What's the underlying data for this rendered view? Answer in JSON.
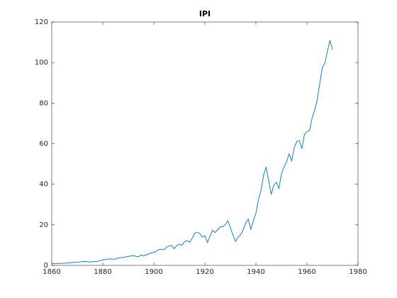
{
  "chart_data": {
    "type": "line",
    "title": "IPI",
    "x": [
      1860,
      1861,
      1862,
      1863,
      1864,
      1865,
      1866,
      1867,
      1868,
      1869,
      1870,
      1871,
      1872,
      1873,
      1874,
      1875,
      1876,
      1877,
      1878,
      1879,
      1880,
      1881,
      1882,
      1883,
      1884,
      1885,
      1886,
      1887,
      1888,
      1889,
      1890,
      1891,
      1892,
      1893,
      1894,
      1895,
      1896,
      1897,
      1898,
      1899,
      1900,
      1901,
      1902,
      1903,
      1904,
      1905,
      1906,
      1907,
      1908,
      1909,
      1910,
      1911,
      1912,
      1913,
      1914,
      1915,
      1916,
      1917,
      1918,
      1919,
      1920,
      1921,
      1922,
      1923,
      1924,
      1925,
      1926,
      1927,
      1928,
      1929,
      1930,
      1931,
      1932,
      1933,
      1934,
      1935,
      1936,
      1937,
      1938,
      1939,
      1940,
      1941,
      1942,
      1943,
      1944,
      1945,
      1946,
      1947,
      1948,
      1949,
      1950,
      1951,
      1952,
      1953,
      1954,
      1955,
      1956,
      1957,
      1958,
      1959,
      1960,
      1961,
      1962,
      1963,
      1964,
      1965,
      1966,
      1967,
      1968,
      1969,
      1970
    ],
    "series": [
      {
        "name": "IPI",
        "color": "#0072bd",
        "values": [
          0.9,
          0.9,
          0.9,
          1.0,
          1.0,
          1.0,
          1.2,
          1.3,
          1.4,
          1.5,
          1.6,
          1.6,
          1.9,
          2.0,
          1.8,
          1.7,
          1.8,
          1.9,
          2.0,
          2.3,
          2.7,
          3.0,
          3.1,
          3.2,
          3.1,
          3.1,
          3.6,
          3.8,
          3.9,
          4.2,
          4.5,
          4.6,
          4.9,
          4.4,
          4.3,
          5.1,
          4.7,
          5.1,
          5.7,
          6.2,
          6.4,
          7.0,
          7.8,
          8.0,
          7.6,
          9.0,
          9.7,
          9.8,
          8.2,
          9.8,
          10.5,
          10.0,
          11.6,
          12.2,
          11.4,
          13.3,
          16.0,
          16.2,
          15.8,
          14.0,
          14.6,
          11.3,
          14.3,
          17.3,
          16.2,
          17.6,
          19.0,
          19.1,
          20.0,
          22.0,
          18.5,
          15.0,
          11.8,
          13.9,
          15.1,
          17.5,
          21.0,
          22.8,
          17.8,
          22.1,
          25.8,
          32.5,
          37.0,
          44.5,
          48.5,
          41.5,
          35.0,
          39.5,
          41.0,
          38.0,
          45.0,
          48.5,
          51.0,
          55.0,
          51.5,
          58.0,
          61.0,
          61.5,
          57.5,
          64.5,
          66.0,
          66.5,
          72.5,
          76.5,
          81.5,
          89.5,
          97.5,
          99.5,
          105.5,
          111.0,
          106.5
        ]
      }
    ],
    "xlim": [
      1860,
      1980
    ],
    "xticks": [
      1860,
      1880,
      1900,
      1920,
      1940,
      1960,
      1980
    ],
    "ylim": [
      0,
      120
    ],
    "yticks": [
      0,
      20,
      40,
      60,
      80,
      100,
      120
    ],
    "grid": false
  }
}
